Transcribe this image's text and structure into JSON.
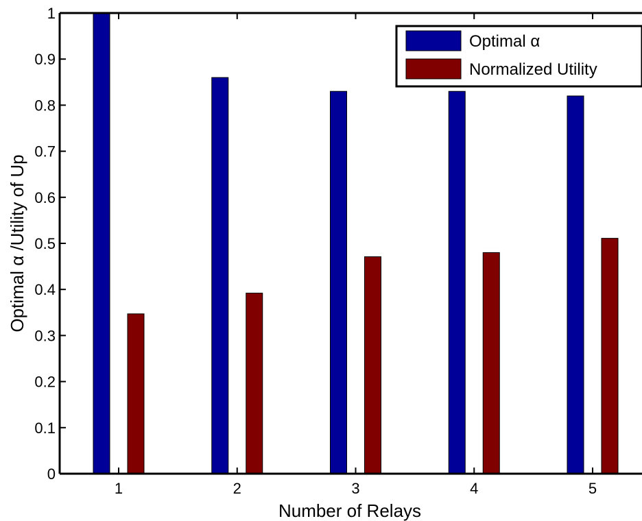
{
  "chart_data": {
    "type": "bar",
    "title": "",
    "xlabel": "Number of Relays",
    "ylabel": "Optimal α /Utility of Up",
    "categories": [
      "1",
      "2",
      "3",
      "4",
      "5"
    ],
    "series": [
      {
        "name": "Optimal α",
        "values": [
          1.0,
          0.86,
          0.83,
          0.83,
          0.82
        ]
      },
      {
        "name": "Normalized Utility",
        "values": [
          0.347,
          0.392,
          0.471,
          0.48,
          0.511
        ]
      }
    ],
    "ylim": [
      0,
      1
    ],
    "yticks": [
      "0",
      "0.1",
      "0.2",
      "0.3",
      "0.4",
      "0.5",
      "0.6",
      "0.7",
      "0.8",
      "0.9",
      "1"
    ],
    "grid": false,
    "legend_position": "top-right"
  },
  "colors": {
    "series": [
      "#000099",
      "#800000"
    ],
    "axis": "#000000",
    "background": "#ffffff"
  }
}
